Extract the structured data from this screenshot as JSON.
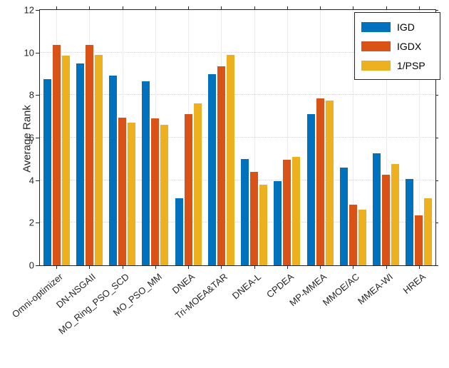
{
  "chart_data": {
    "type": "bar",
    "title": "",
    "xlabel": "",
    "ylabel": "Average Rank",
    "ylim": [
      0,
      12
    ],
    "yticks": [
      0,
      2,
      4,
      6,
      8,
      10,
      12
    ],
    "grid": true,
    "legend_position": "top-right",
    "categories": [
      "Omni-optimizer",
      "DN-NSGAII",
      "MO_Ring_PSO_SCD",
      "MO_PSO_MM",
      "DNEA",
      "Tri-MOEA&TAR",
      "DNEA-L",
      "CPDEA",
      "MP-MMEA",
      "MMOE/AC",
      "MMEA-WI",
      "HREA"
    ],
    "series": [
      {
        "name": "IGD",
        "color": "#0072BD",
        "values": [
          8.75,
          9.5,
          8.9,
          8.65,
          3.15,
          9.0,
          5.0,
          3.95,
          7.1,
          4.6,
          5.25,
          4.05
        ]
      },
      {
        "name": "IGDX",
        "color": "#D95319",
        "values": [
          10.35,
          10.35,
          6.95,
          6.9,
          7.1,
          9.35,
          4.4,
          4.95,
          7.85,
          2.85,
          4.25,
          2.35
        ]
      },
      {
        "name": "1/PSP",
        "color": "#EDB120",
        "values": [
          9.85,
          9.9,
          6.7,
          6.6,
          7.6,
          9.9,
          3.8,
          5.1,
          7.75,
          2.6,
          4.75,
          3.15
        ]
      }
    ]
  },
  "colors": {
    "axis": "#262626",
    "grid_horizontal": "#d6d6d6",
    "grid_vertical": "#ececec",
    "legend_border": "#262626",
    "background": "#ffffff"
  }
}
